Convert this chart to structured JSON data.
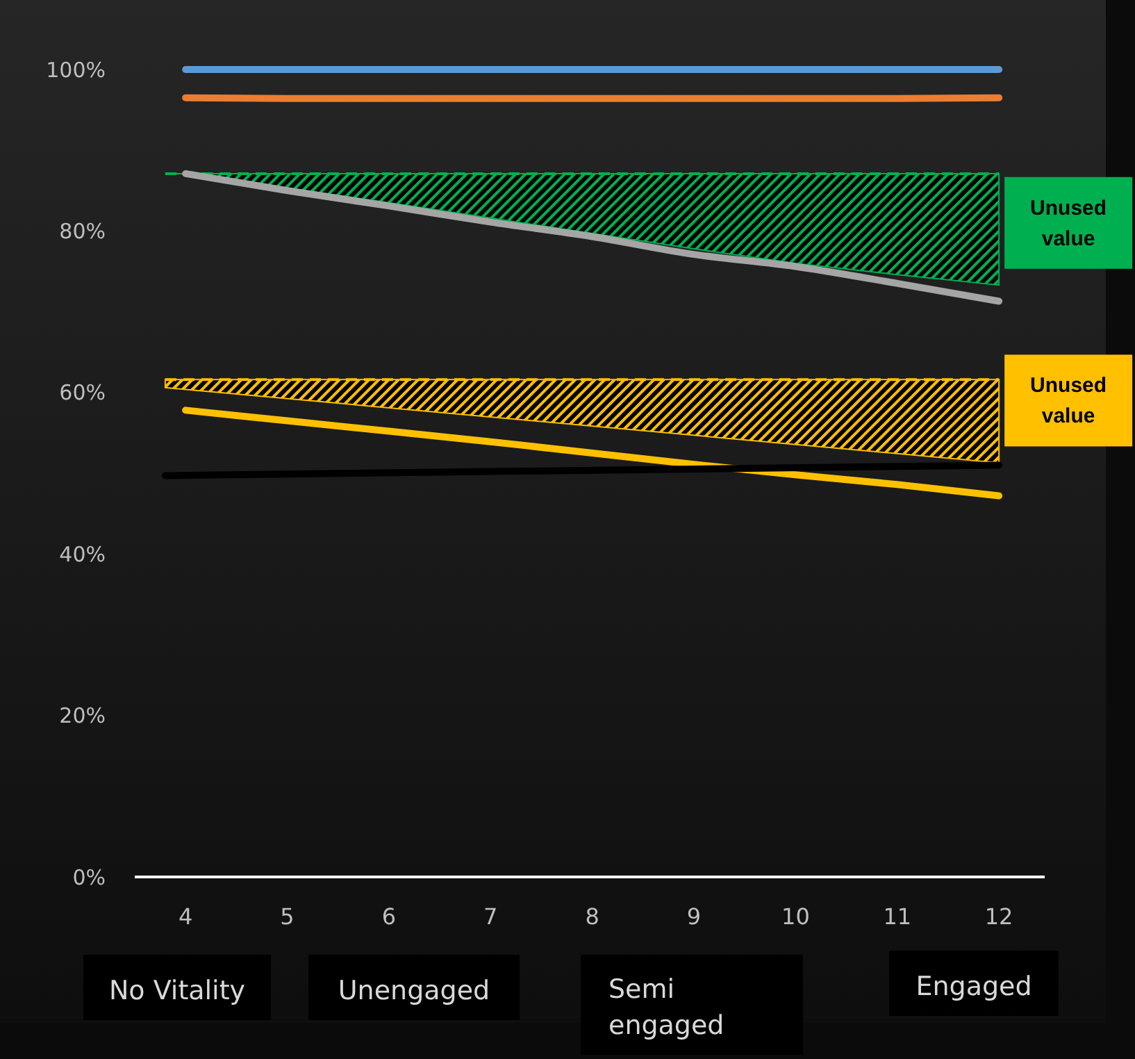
{
  "chart_data": {
    "type": "line",
    "x": [
      4,
      5,
      6,
      7,
      8,
      9,
      10,
      11,
      12
    ],
    "xlim": [
      3.5,
      12.45
    ],
    "xticks": [
      4,
      5,
      6,
      7,
      8,
      9,
      10,
      11,
      12
    ],
    "ylim": [
      0,
      100
    ],
    "yticks": [
      {
        "value": 0,
        "label": "0%"
      },
      {
        "value": 20,
        "label": "20%"
      },
      {
        "value": 40,
        "label": "40%"
      },
      {
        "value": 60,
        "label": "60%"
      },
      {
        "value": 80,
        "label": "80%"
      },
      {
        "value": 100,
        "label": "100%"
      }
    ],
    "grid": false,
    "marker": "none",
    "line_style": "solid",
    "series": [
      {
        "color": "#00b050",
        "line_style": "dashed",
        "x": [
          3.8,
          4,
          5,
          6,
          7,
          8,
          9,
          10,
          11,
          12
        ],
        "values": [
          87.1,
          87.1,
          87.1,
          87.1,
          87.1,
          87.1,
          87.1,
          87.1,
          87.1,
          87.1
        ],
        "upper": [
          87.1,
          87.1,
          87.1,
          87.1,
          87.1,
          87.1,
          87.1,
          87.1,
          87.1,
          87.1
        ],
        "lower": [
          87.1,
          87.1,
          85.3,
          83.5,
          81.6,
          79.7,
          77.8,
          76.0,
          74.6,
          73.3
        ]
      },
      {
        "color": "#ffc000",
        "line_style": "dashed",
        "x": [
          3.8,
          12
        ],
        "values": [
          61.6,
          61.6
        ],
        "upper": [
          61.6,
          61.6
        ],
        "lower": [
          60.6,
          51.3
        ]
      },
      {
        "color": "#5b9bd5",
        "values": [
          100,
          100,
          100,
          100,
          100,
          100,
          100,
          100,
          100
        ]
      },
      {
        "color": "#ed7d31",
        "values": [
          96.5,
          96.4,
          96.4,
          96.4,
          96.4,
          96.4,
          96.4,
          96.4,
          96.5
        ]
      },
      {
        "color": "#a5a5a5",
        "values": [
          87.1,
          85.0,
          83.1,
          81.1,
          79.3,
          77.1,
          75.6,
          73.5,
          71.3
        ]
      },
      {
        "color": "#ffc000",
        "values": [
          57.8,
          56.5,
          55.2,
          53.9,
          52.5,
          51.1,
          49.8,
          48.6,
          47.2
        ]
      },
      {
        "color": "#000000",
        "x": [
          3.8,
          12
        ],
        "values": [
          49.7,
          51
        ]
      }
    ],
    "annotations": [
      {
        "text": "Unused value",
        "x": 12,
        "y": 81
      },
      {
        "text": "Unused value",
        "x": 12,
        "y": 59
      },
      "No Vitality",
      "Unengaged",
      "Semi engaged",
      "Engaged"
    ]
  }
}
